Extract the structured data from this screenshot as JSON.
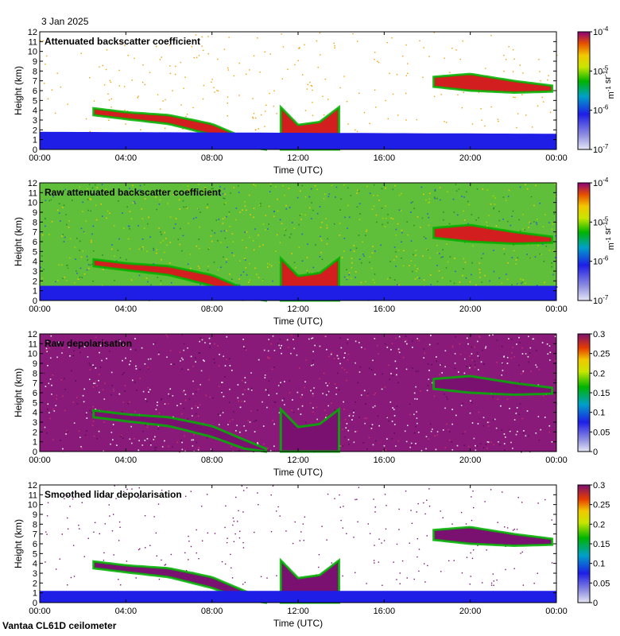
{
  "date_label": "3 Jan 2025",
  "footer_label": "Vantaa CL61D ceilometer",
  "chart_data": [
    {
      "type": "heatmap",
      "title": "Attenuated backscatter coefficient",
      "xlabel": "Time (UTC)",
      "ylabel": "Height (km)",
      "x_ticks": [
        "00:00",
        "04:00",
        "08:00",
        "12:00",
        "16:00",
        "20:00",
        "00:00"
      ],
      "y_ticks": [
        "0",
        "1",
        "2",
        "3",
        "4",
        "5",
        "6",
        "7",
        "8",
        "9",
        "10",
        "11",
        "12"
      ],
      "ylim": [
        0,
        12
      ],
      "colorbar": {
        "scale": "log",
        "range": [
          1e-07,
          0.0001
        ],
        "ticks": [
          "10-7",
          "10-6",
          "10-5",
          "10-4"
        ],
        "unit": "m-1 sr-1"
      },
      "background": "white",
      "colors": {
        "noise": "#f0a000",
        "low": "#1e1ee6",
        "mid": "#00b400",
        "high": "#d21e1e"
      },
      "features": [
        {
          "kind": "cloud-layer",
          "x": [
            2.5,
            4,
            6,
            8,
            9.5,
            10.5
          ],
          "top": [
            4.2,
            3.8,
            3.5,
            2.6,
            1.2,
            0.3
          ],
          "bottom": [
            3.5,
            3.1,
            2.6,
            1.5,
            0.3,
            0
          ]
        },
        {
          "kind": "cloud-layer",
          "x": [
            11.2,
            12,
            13,
            13.9
          ],
          "top": [
            4.3,
            2.5,
            2.8,
            4.3
          ],
          "bottom": [
            0,
            0,
            0,
            0
          ]
        },
        {
          "kind": "cloud-layer",
          "x": [
            18.3,
            20,
            22,
            23.8
          ],
          "top": [
            7.4,
            7.7,
            7.0,
            6.5
          ],
          "bottom": [
            6.4,
            6.0,
            5.8,
            5.9
          ]
        },
        {
          "kind": "boundary-layer",
          "x": [
            0,
            24
          ],
          "top": [
            1.8,
            1.6
          ],
          "bottom": [
            0,
            0
          ]
        }
      ]
    },
    {
      "type": "heatmap",
      "title": "Raw attenuated backscatter coefficient",
      "xlabel": "Time (UTC)",
      "ylabel": "Height (km)",
      "x_ticks": [
        "00:00",
        "04:00",
        "08:00",
        "12:00",
        "16:00",
        "20:00",
        "00:00"
      ],
      "y_ticks": [
        "0",
        "1",
        "2",
        "3",
        "4",
        "5",
        "6",
        "7",
        "8",
        "9",
        "10",
        "11",
        "12"
      ],
      "ylim": [
        0,
        12
      ],
      "colorbar": {
        "scale": "log",
        "range": [
          1e-07,
          0.0001
        ],
        "ticks": [
          "10-7",
          "10-6",
          "10-5",
          "10-4"
        ],
        "unit": "m-1 sr-1"
      },
      "background": "green-noise",
      "colors": {
        "noise": "#5fbf3a",
        "low": "#1e1ee6",
        "mid": "#00b400",
        "high": "#d21e1e"
      },
      "features": [
        {
          "kind": "cloud-layer",
          "x": [
            2.5,
            4,
            6,
            8,
            9.5,
            10.5
          ],
          "top": [
            4.2,
            3.8,
            3.5,
            2.6,
            1.2,
            0.3
          ],
          "bottom": [
            3.5,
            3.1,
            2.6,
            1.5,
            0.3,
            0
          ]
        },
        {
          "kind": "cloud-layer",
          "x": [
            11.2,
            12,
            13,
            13.9
          ],
          "top": [
            4.3,
            2.5,
            2.8,
            4.3
          ],
          "bottom": [
            0,
            0,
            0,
            0
          ]
        },
        {
          "kind": "cloud-layer",
          "x": [
            18.3,
            20,
            22,
            23.8
          ],
          "top": [
            7.4,
            7.7,
            7.0,
            6.5
          ],
          "bottom": [
            6.4,
            6.0,
            5.8,
            5.9
          ]
        },
        {
          "kind": "boundary-layer",
          "x": [
            0,
            24
          ],
          "top": [
            1.5,
            1.5
          ],
          "bottom": [
            0,
            0
          ]
        }
      ]
    },
    {
      "type": "heatmap",
      "title": "Raw depolarisation",
      "xlabel": "Time (UTC)",
      "ylabel": "Height (km)",
      "x_ticks": [
        "00:00",
        "04:00",
        "08:00",
        "12:00",
        "16:00",
        "20:00",
        "00:00"
      ],
      "y_ticks": [
        "0",
        "1",
        "2",
        "3",
        "4",
        "5",
        "6",
        "7",
        "8",
        "9",
        "10",
        "11",
        "12"
      ],
      "ylim": [
        0,
        12
      ],
      "colorbar": {
        "scale": "linear",
        "range": [
          0,
          0.3
        ],
        "ticks": [
          "0",
          "0.05",
          "0.1",
          "0.15",
          "0.2",
          "0.25",
          "0.3"
        ],
        "unit": ""
      },
      "background": "purple-noise",
      "colors": {
        "noise": "#8a1a7a",
        "low": "#1e1ee6",
        "mid": "#00b400",
        "high": "#7a1070"
      },
      "features": [
        {
          "kind": "cloud-layer",
          "x": [
            2.5,
            4,
            6,
            8,
            9.5,
            10.5
          ],
          "top": [
            4.2,
            3.8,
            3.5,
            2.6,
            1.2,
            0.3
          ],
          "bottom": [
            3.5,
            3.1,
            2.6,
            1.5,
            0.3,
            0
          ]
        },
        {
          "kind": "cloud-layer",
          "x": [
            11.2,
            12,
            13,
            13.9
          ],
          "top": [
            4.3,
            2.5,
            2.8,
            4.3
          ],
          "bottom": [
            0,
            0,
            0,
            0
          ]
        },
        {
          "kind": "cloud-layer",
          "x": [
            18.3,
            20,
            22,
            23.8
          ],
          "top": [
            7.4,
            7.7,
            7.0,
            6.5
          ],
          "bottom": [
            6.4,
            6.0,
            5.8,
            5.9
          ]
        }
      ]
    },
    {
      "type": "heatmap",
      "title": "Smoothed lidar depolarisation",
      "xlabel": "Time (UTC)",
      "ylabel": "Height (km)",
      "x_ticks": [
        "00:00",
        "04:00",
        "08:00",
        "12:00",
        "16:00",
        "20:00",
        "00:00"
      ],
      "y_ticks": [
        "0",
        "1",
        "2",
        "3",
        "4",
        "5",
        "6",
        "7",
        "8",
        "9",
        "10",
        "11",
        "12"
      ],
      "ylim": [
        0,
        12
      ],
      "colorbar": {
        "scale": "linear",
        "range": [
          0,
          0.3
        ],
        "ticks": [
          "0",
          "0.05",
          "0.1",
          "0.15",
          "0.2",
          "0.25",
          "0.3"
        ],
        "unit": ""
      },
      "background": "white",
      "colors": {
        "noise": "#7a1070",
        "low": "#1e1ee6",
        "mid": "#00b400",
        "high": "#7a1070"
      },
      "features": [
        {
          "kind": "cloud-layer",
          "x": [
            2.5,
            4,
            6,
            8,
            9.5,
            10.5
          ],
          "top": [
            4.2,
            3.8,
            3.5,
            2.6,
            1.2,
            0.3
          ],
          "bottom": [
            3.5,
            3.1,
            2.6,
            1.5,
            0.3,
            0
          ]
        },
        {
          "kind": "cloud-layer",
          "x": [
            11.2,
            12,
            13,
            13.9
          ],
          "top": [
            4.3,
            2.5,
            2.8,
            4.3
          ],
          "bottom": [
            0,
            0,
            0,
            0
          ]
        },
        {
          "kind": "cloud-layer",
          "x": [
            18.3,
            20,
            22,
            23.8
          ],
          "top": [
            7.4,
            7.7,
            7.0,
            6.5
          ],
          "bottom": [
            6.4,
            6.0,
            5.8,
            5.9
          ]
        },
        {
          "kind": "boundary-layer",
          "x": [
            0,
            24
          ],
          "top": [
            1.2,
            1.2
          ],
          "bottom": [
            0,
            0
          ]
        }
      ]
    }
  ]
}
